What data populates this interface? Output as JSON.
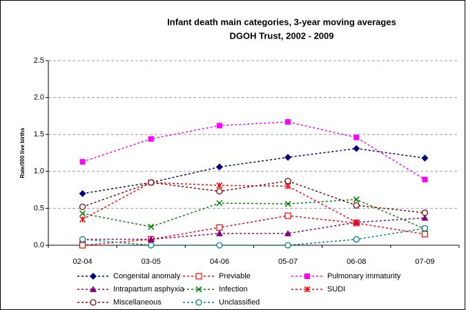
{
  "chart_data": {
    "type": "line",
    "title": "Infant death main categories, 3-year moving averages",
    "subtitle": "DGOH Trust, 2002 - 2009",
    "y_label": "Rate/000 live births",
    "categories": [
      "02-04",
      "03-05",
      "04-06",
      "05-07",
      "06-08",
      "07-09"
    ],
    "ylim": [
      0,
      2.5
    ],
    "yticks": [
      {
        "value": 0,
        "label": "0.0"
      },
      {
        "value": 0.5,
        "label": "0.5"
      },
      {
        "value": 1,
        "label": "1.0"
      },
      {
        "value": 1.5,
        "label": "1.5"
      },
      {
        "value": 2,
        "label": "2.0"
      },
      {
        "value": 2.5,
        "label": "2.5"
      }
    ],
    "grid": true,
    "series": [
      {
        "name": "Congenital anomaly",
        "color": "#000080",
        "marker": "diamond",
        "values": [
          0.7,
          0.85,
          1.06,
          1.19,
          1.31,
          1.18
        ]
      },
      {
        "name": "Previable",
        "color": "#ff0000",
        "marker": "square-open",
        "values": [
          0.0,
          0.08,
          0.24,
          0.4,
          0.3,
          0.15
        ]
      },
      {
        "name": "Pulmonary immaturity",
        "color": "#ff00ff",
        "marker": "square",
        "values": [
          1.13,
          1.44,
          1.62,
          1.67,
          1.46,
          0.89
        ]
      },
      {
        "name": "Intrapartum asphyxia",
        "color": "#800080",
        "marker": "triangle",
        "values": [
          0.08,
          0.08,
          0.16,
          0.16,
          0.31,
          0.37
        ]
      },
      {
        "name": "Infection",
        "color": "#008000",
        "marker": "x",
        "values": [
          0.43,
          0.25,
          0.57,
          0.56,
          0.62,
          0.22
        ]
      },
      {
        "name": "SUDI",
        "color": "#ff0000",
        "marker": "star",
        "values": [
          0.35,
          0.85,
          0.81,
          0.8,
          0.31,
          null
        ]
      },
      {
        "name": "Miscellaneous",
        "color": "#800000",
        "marker": "circle-open",
        "values": [
          0.52,
          0.85,
          0.73,
          0.87,
          0.54,
          0.44
        ]
      },
      {
        "name": "Unclassified",
        "color": "#008080",
        "marker": "circle-open",
        "values": [
          0.08,
          0.0,
          0.0,
          0.0,
          0.08,
          0.23
        ]
      }
    ]
  }
}
